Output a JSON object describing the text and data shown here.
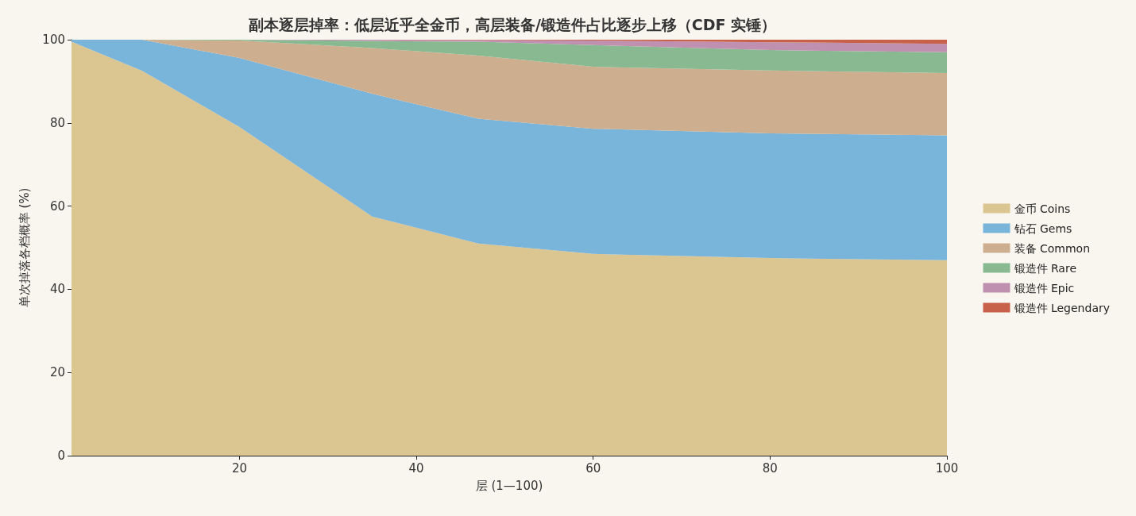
{
  "chart_data": {
    "type": "area",
    "stacked": true,
    "title": "副本逐层掉率：低层近乎全金币，高层装备/锻造件占比逐步上移（CDF 实锤）",
    "xlabel": "层 (1—100)",
    "ylabel": "单次掉落各档概率 (%)",
    "x": [
      1,
      9,
      20,
      35,
      47,
      60,
      80,
      100
    ],
    "series": [
      {
        "name": "金币 Coins",
        "color": "#dbc590",
        "values": [
          99.5,
          92.5,
          79,
          57.5,
          51,
          48.5,
          47.5,
          47
        ]
      },
      {
        "name": "钻石 Gems",
        "color": "#79b4da",
        "values": [
          0.5,
          7.5,
          16.6,
          29.5,
          30,
          30.1,
          30,
          30
        ]
      },
      {
        "name": "装备 Common",
        "color": "#cdaf8f",
        "values": [
          0,
          0,
          4.2,
          11,
          15.2,
          14.9,
          15.1,
          15
        ]
      },
      {
        "name": "锻造件 Rare",
        "color": "#88b991",
        "values": [
          0,
          0,
          0.2,
          1.7,
          3.3,
          5.2,
          4.9,
          5
        ]
      },
      {
        "name": "锻造件 Epic",
        "color": "#c090b0",
        "values": [
          0,
          0,
          0,
          0.3,
          0.4,
          1.1,
          1.9,
          2
        ]
      },
      {
        "name": "锻造件 Legendary",
        "color": "#c8614a",
        "values": [
          0,
          0,
          0,
          0,
          0.1,
          0.2,
          0.6,
          1
        ]
      }
    ],
    "xlim": [
      1,
      100
    ],
    "xticks": [
      20,
      40,
      60,
      80,
      100
    ],
    "ylim": [
      0,
      100
    ],
    "yticks": [
      0,
      20,
      40,
      60,
      80,
      100
    ],
    "grid": false,
    "legend": "right",
    "marker": "none"
  }
}
